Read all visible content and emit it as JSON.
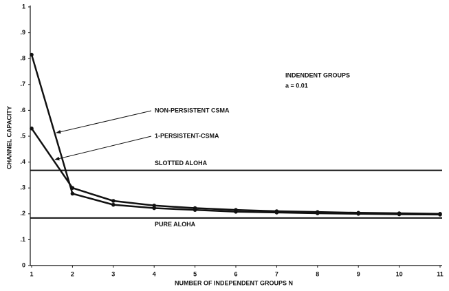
{
  "chart_data": {
    "type": "line",
    "x_label": "NUMBER OF INDEPENDENT GROUPS N",
    "y_label": "CHANNEL CAPACITY",
    "x": [
      1,
      2,
      3,
      4,
      5,
      6,
      7,
      8,
      9,
      10,
      11
    ],
    "xlim": [
      1,
      11
    ],
    "xticks": [
      1,
      2,
      3,
      4,
      5,
      6,
      7,
      8,
      9,
      10,
      11
    ],
    "ylim": [
      0,
      1
    ],
    "yticks": [
      0,
      {
        "value": 0.1,
        "label": ".1"
      },
      {
        "value": 0.2,
        "label": ".2"
      },
      {
        "value": 0.3,
        "label": ".3"
      },
      {
        "value": 0.4,
        "label": ".4"
      },
      {
        "value": 0.5,
        "label": ".5"
      },
      {
        "value": 0.6,
        "label": ".6"
      },
      {
        "value": 0.7,
        "label": ".7"
      },
      {
        "value": 0.8,
        "label": ".8"
      },
      {
        "value": 0.9,
        "label": ".9"
      },
      1
    ],
    "series": [
      {
        "name": "NON-PERSISTENT CSMA",
        "color": "#111111",
        "values": [
          0.815,
          0.278,
          0.235,
          0.222,
          0.215,
          0.208,
          0.205,
          0.202,
          0.2,
          0.198,
          0.197
        ]
      },
      {
        "name": "1-PERSISTENT-CSMA",
        "color": "#111111",
        "values": [
          0.53,
          0.3,
          0.25,
          0.232,
          0.222,
          0.215,
          0.21,
          0.207,
          0.204,
          0.202,
          0.2
        ]
      }
    ],
    "reference_lines": [
      {
        "label": "SLOTTED ALOHA",
        "value": 0.368
      },
      {
        "label": "PURE ALOHA",
        "value": 0.184
      }
    ],
    "annotations": [
      "INDENDENT GROUPS",
      "a = 0.01"
    ]
  }
}
